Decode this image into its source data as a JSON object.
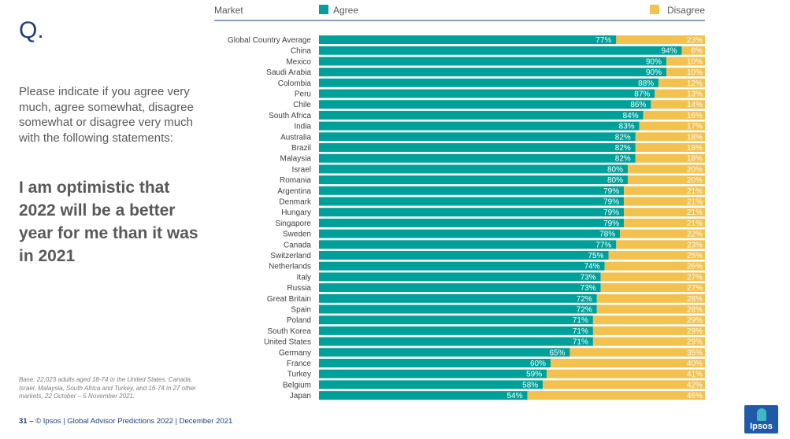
{
  "page": {
    "q_label": "Q.",
    "question": "Please indicate if you agree very much, agree somewhat, disagree somewhat or disagree very much with the following statements:",
    "statement": "I am optimistic that 2022 will be a better year for me than it was in 2021",
    "base_note": "Base: 22,023 adults aged 18-74 in the United States, Canada, Israel, Malaysia, South Africa and Turkey, and 16-74 in 27 other markets, 22 October – 5 November 2021.",
    "footer_page": "31 –",
    "footer_text": "© Ipsos | Global Advisor Predictions 2022 | December 2021",
    "logo_text": "Ipsos"
  },
  "colors": {
    "agree": "#00A09A",
    "disagree": "#F2C14E",
    "header_line": "#1f3d7a",
    "text": "#595959"
  },
  "chart_data": {
    "type": "bar",
    "orientation": "horizontal-stacked-100",
    "header_label": "Market",
    "legend": [
      {
        "name": "Agree",
        "color": "#00A09A"
      },
      {
        "name": "Disagree",
        "color": "#F2C14E"
      }
    ],
    "categories": [
      "Global Country Average",
      "China",
      "Mexico",
      "Saudi Arabia",
      "Colombia",
      "Peru",
      "Chile",
      "South Africa",
      "India",
      "Australia",
      "Brazil",
      "Malaysia",
      "Israel",
      "Romania",
      "Argentina",
      "Denmark",
      "Hungary",
      "Singapore",
      "Sweden",
      "Canada",
      "Switzerland",
      "Netherlands",
      "Italy",
      "Russia",
      "Great Britain",
      "Spain",
      "Poland",
      "South Korea",
      "United States",
      "Germany",
      "France",
      "Turkey",
      "Belgium",
      "Japan"
    ],
    "series": [
      {
        "name": "Agree",
        "values": [
          77,
          94,
          90,
          90,
          88,
          87,
          86,
          84,
          83,
          82,
          82,
          82,
          80,
          80,
          79,
          79,
          79,
          79,
          78,
          77,
          75,
          74,
          73,
          73,
          72,
          72,
          71,
          71,
          71,
          65,
          60,
          59,
          58,
          54
        ]
      },
      {
        "name": "Disagree",
        "values": [
          23,
          6,
          10,
          10,
          12,
          13,
          14,
          16,
          17,
          18,
          18,
          18,
          20,
          20,
          21,
          21,
          21,
          21,
          22,
          23,
          25,
          26,
          27,
          27,
          28,
          28,
          29,
          29,
          29,
          35,
          40,
          41,
          42,
          46
        ]
      }
    ],
    "xlim": [
      0,
      100
    ],
    "value_suffix": "%"
  }
}
